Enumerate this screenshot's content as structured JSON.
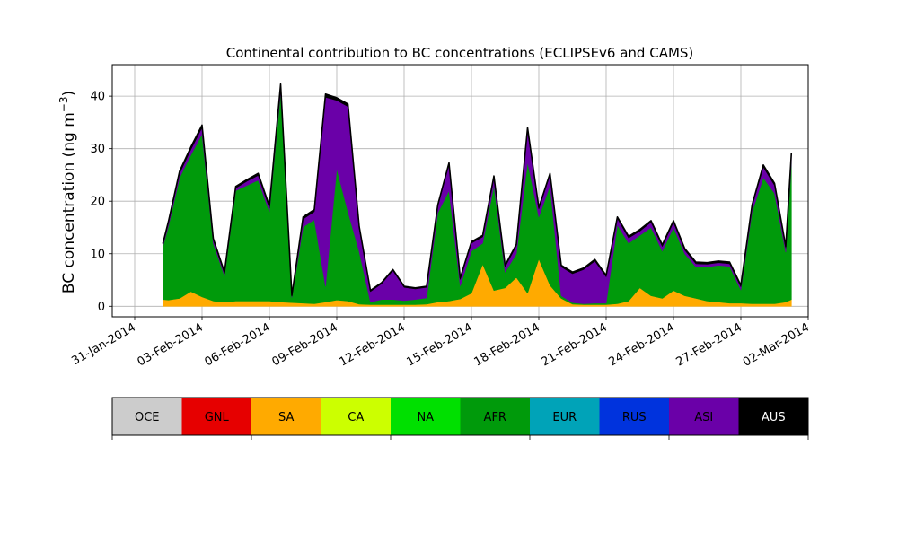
{
  "chart_data": {
    "type": "area",
    "stacked": true,
    "title": "Continental contribution to BC concentrations (ECLIPSEv6 and CAMS)",
    "xlabel": "",
    "ylabel": "BC concentration (ng m",
    "ylabel_exponent": "−3",
    "ylabel_close": ")",
    "xlim": [
      "2014-01-30",
      "2014-03-02"
    ],
    "ylim": [
      -2,
      46
    ],
    "grid": true,
    "x_ticks": [
      {
        "date": "2014-01-31",
        "label": "31-Jan-2014"
      },
      {
        "date": "2014-02-03",
        "label": "03-Feb-2014"
      },
      {
        "date": "2014-02-06",
        "label": "06-Feb-2014"
      },
      {
        "date": "2014-02-09",
        "label": "09-Feb-2014"
      },
      {
        "date": "2014-02-12",
        "label": "12-Feb-2014"
      },
      {
        "date": "2014-02-15",
        "label": "15-Feb-2014"
      },
      {
        "date": "2014-02-18",
        "label": "18-Feb-2014"
      },
      {
        "date": "2014-02-21",
        "label": "21-Feb-2014"
      },
      {
        "date": "2014-02-24",
        "label": "24-Feb-2014"
      },
      {
        "date": "2014-02-27",
        "label": "27-Feb-2014"
      },
      {
        "date": "2014-03-02",
        "label": "02-Mar-2014"
      }
    ],
    "y_ticks": [
      0,
      10,
      20,
      30,
      40
    ],
    "x": [
      "2014-02-01T06",
      "2014-02-01T12",
      "2014-02-02T00",
      "2014-02-02T12",
      "2014-02-03T00",
      "2014-02-03T12",
      "2014-02-04T00",
      "2014-02-04T12",
      "2014-02-05T00",
      "2014-02-05T12",
      "2014-02-06T00",
      "2014-02-06T12",
      "2014-02-07T00",
      "2014-02-07T12",
      "2014-02-08T00",
      "2014-02-08T12",
      "2014-02-09T00",
      "2014-02-09T12",
      "2014-02-10T00",
      "2014-02-10T12",
      "2014-02-11T00",
      "2014-02-11T12",
      "2014-02-12T00",
      "2014-02-12T12",
      "2014-02-13T00",
      "2014-02-13T12",
      "2014-02-14T00",
      "2014-02-14T12",
      "2014-02-15T00",
      "2014-02-15T12",
      "2014-02-16T00",
      "2014-02-16T12",
      "2014-02-17T00",
      "2014-02-17T12",
      "2014-02-18T00",
      "2014-02-18T12",
      "2014-02-19T00",
      "2014-02-19T12",
      "2014-02-20T00",
      "2014-02-20T12",
      "2014-02-21T00",
      "2014-02-21T12",
      "2014-02-22T00",
      "2014-02-22T12",
      "2014-02-23T00",
      "2014-02-23T12",
      "2014-02-24T00",
      "2014-02-24T12",
      "2014-02-25T00",
      "2014-02-25T12",
      "2014-02-26T00",
      "2014-02-26T12",
      "2014-02-27T00",
      "2014-02-27T12",
      "2014-02-28T00",
      "2014-02-28T12",
      "2014-03-01T00",
      "2014-03-01T06"
    ],
    "series": [
      {
        "name": "SA",
        "color": "#ffaa00",
        "values": [
          1.3,
          1.2,
          1.5,
          2.8,
          1.8,
          1.0,
          0.8,
          1.0,
          1.0,
          1.0,
          1.0,
          0.8,
          0.7,
          0.6,
          0.5,
          0.8,
          1.2,
          1.0,
          0.4,
          0.3,
          0.3,
          0.3,
          0.3,
          0.3,
          0.4,
          0.8,
          1.0,
          1.4,
          2.5,
          8.0,
          3.0,
          3.5,
          5.5,
          2.5,
          9.0,
          4.0,
          1.5,
          0.4,
          0.3,
          0.3,
          0.3,
          0.5,
          1.0,
          3.5,
          2.0,
          1.5,
          3.0,
          2.0,
          1.5,
          1.0,
          0.8,
          0.6,
          0.6,
          0.5,
          0.5,
          0.5,
          0.8,
          1.3
        ]
      },
      {
        "name": "AFR",
        "color": "#009a0b",
        "values": [
          10.0,
          14.0,
          23.0,
          26.0,
          31.0,
          11.0,
          5.0,
          21.0,
          22.0,
          23.0,
          17.0,
          40.0,
          1.0,
          14.5,
          16.0,
          3.0,
          25.0,
          17.0,
          10.0,
          0.5,
          1.0,
          1.0,
          0.8,
          1.0,
          1.2,
          17.0,
          21.0,
          2.5,
          8.0,
          4.0,
          20.0,
          3.0,
          4.5,
          25.0,
          8.0,
          19.0,
          0.5,
          0.3,
          0.2,
          0.3,
          0.3,
          15.0,
          11.0,
          10.0,
          13.0,
          9.0,
          12.0,
          8.0,
          6.0,
          6.5,
          7.0,
          7.0,
          2.5,
          17.5,
          24.0,
          21.0,
          9.5,
          26.0
        ]
      },
      {
        "name": "ASI",
        "color": "#6a00a8",
        "values": [
          0.3,
          0.6,
          0.8,
          1.0,
          1.2,
          0.6,
          0.4,
          0.5,
          0.8,
          0.9,
          0.7,
          1.0,
          0.2,
          1.5,
          1.5,
          36.0,
          13.0,
          20.0,
          4.5,
          2.0,
          3.0,
          5.5,
          2.5,
          2.0,
          2.0,
          1.2,
          5.0,
          1.2,
          1.5,
          1.2,
          1.5,
          1.0,
          1.5,
          6.0,
          1.5,
          2.0,
          5.5,
          5.5,
          6.5,
          8.0,
          5.0,
          1.2,
          1.0,
          0.8,
          1.0,
          0.9,
          1.0,
          0.7,
          0.6,
          0.5,
          0.5,
          0.5,
          0.6,
          1.0,
          2.0,
          1.5,
          0.8,
          1.5
        ]
      },
      {
        "name": "AUS",
        "color": "#000000",
        "values": [
          0.3,
          0.3,
          0.4,
          0.5,
          0.5,
          0.3,
          0.3,
          0.3,
          0.3,
          0.4,
          0.4,
          0.5,
          0.2,
          0.4,
          0.4,
          0.6,
          0.5,
          0.5,
          0.3,
          0.2,
          0.2,
          0.2,
          0.2,
          0.2,
          0.2,
          0.3,
          0.3,
          0.3,
          0.3,
          0.3,
          0.3,
          0.3,
          0.3,
          0.5,
          0.3,
          0.3,
          0.3,
          0.3,
          0.3,
          0.3,
          0.3,
          0.3,
          0.3,
          0.3,
          0.3,
          0.3,
          0.3,
          0.3,
          0.3,
          0.3,
          0.3,
          0.3,
          0.3,
          0.3,
          0.4,
          0.4,
          0.3,
          0.4
        ]
      }
    ],
    "legend": {
      "placement": "below",
      "entries": [
        {
          "label": "OCE",
          "color": "#cccccc"
        },
        {
          "label": "GNL",
          "color": "#e60000"
        },
        {
          "label": "SA",
          "color": "#ffaa00"
        },
        {
          "label": "CA",
          "color": "#ccff00"
        },
        {
          "label": "NA",
          "color": "#00e000"
        },
        {
          "label": "AFR",
          "color": "#009a0b"
        },
        {
          "label": "EUR",
          "color": "#00a3b8"
        },
        {
          "label": "RUS",
          "color": "#0033dd"
        },
        {
          "label": "ASI",
          "color": "#6a00a8"
        },
        {
          "label": "AUS",
          "color": "#000000"
        }
      ]
    }
  }
}
